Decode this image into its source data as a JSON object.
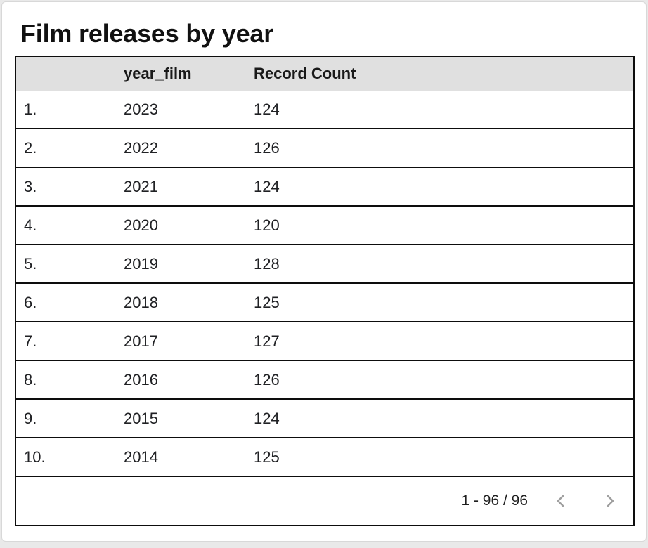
{
  "header": {
    "title": "Film releases by year"
  },
  "chart_data": {
    "type": "table",
    "title": "Film releases by year",
    "columns": [
      "",
      "year_film",
      "Record Count"
    ],
    "rows": [
      [
        "1.",
        "2023",
        "124"
      ],
      [
        "2.",
        "2022",
        "126"
      ],
      [
        "3.",
        "2021",
        "124"
      ],
      [
        "4.",
        "2020",
        "120"
      ],
      [
        "5.",
        "2019",
        "128"
      ],
      [
        "6.",
        "2018",
        "125"
      ],
      [
        "7.",
        "2017",
        "127"
      ],
      [
        "8.",
        "2016",
        "126"
      ],
      [
        "9.",
        "2015",
        "124"
      ],
      [
        "10.",
        "2014",
        "125"
      ]
    ]
  },
  "pagination": {
    "label": "1 - 96 / 96",
    "prev_icon": "chevron-left",
    "next_icon": "chevron-right"
  },
  "colors": {
    "page_bg": "#e9e9e9",
    "card_bg": "#ffffff",
    "header_row_bg": "#e0e0e0",
    "table_border": "#0d0d0d",
    "text": "#202124",
    "chevron": "#9e9e9e"
  }
}
